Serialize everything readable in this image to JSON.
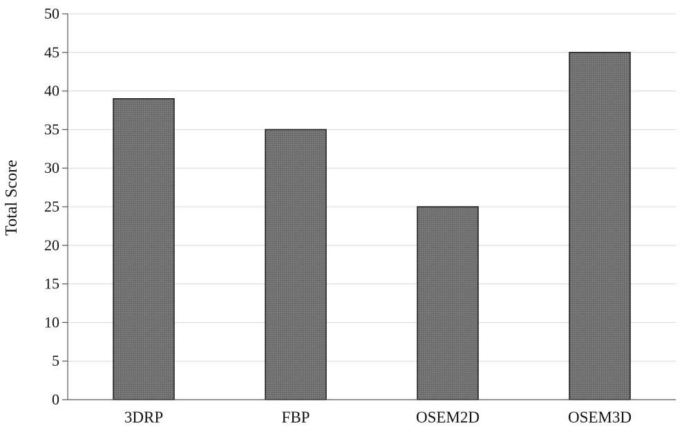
{
  "chart_data": {
    "type": "bar",
    "title": "",
    "xlabel": "",
    "ylabel": "Total Score",
    "categories": [
      "3DRP",
      "FBP",
      "OSEM2D",
      "OSEM3D"
    ],
    "values": [
      39,
      35,
      25,
      45
    ],
    "ylim": [
      0,
      50
    ],
    "yticks": [
      0,
      5,
      10,
      15,
      20,
      25,
      30,
      35,
      40,
      45,
      50
    ],
    "grid": true,
    "legend": "none",
    "colors": {
      "bar_fill": "#6f6f6f",
      "bar_stroke": "#1a1a1a",
      "grid": "#d9d9d9",
      "axis": "#555555"
    }
  }
}
